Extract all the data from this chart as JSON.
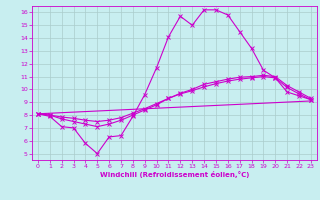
{
  "xlabel": "Windchill (Refroidissement éolien,°C)",
  "xlim": [
    -0.5,
    23.5
  ],
  "ylim": [
    4.5,
    16.5
  ],
  "xticks": [
    0,
    1,
    2,
    3,
    4,
    5,
    6,
    7,
    8,
    9,
    10,
    11,
    12,
    13,
    14,
    15,
    16,
    17,
    18,
    19,
    20,
    21,
    22,
    23
  ],
  "yticks": [
    5,
    6,
    7,
    8,
    9,
    10,
    11,
    12,
    13,
    14,
    15,
    16
  ],
  "bg_color": "#c8eef0",
  "line_color": "#cc00cc",
  "grid_color": "#aacccc",
  "lines": [
    {
      "x": [
        0,
        1,
        2,
        3,
        4,
        5,
        6,
        7,
        8,
        9,
        10,
        11,
        12,
        13,
        14,
        15,
        16,
        17,
        18,
        19,
        20,
        21,
        22,
        23
      ],
      "y": [
        8.1,
        7.9,
        7.1,
        7.0,
        5.8,
        5.0,
        6.3,
        6.4,
        7.9,
        9.6,
        11.7,
        14.1,
        15.7,
        15.0,
        16.2,
        16.2,
        15.8,
        14.5,
        13.2,
        11.5,
        10.9,
        9.8,
        9.5,
        9.2
      ],
      "marker": true
    },
    {
      "x": [
        0,
        1,
        2,
        3,
        4,
        5,
        6,
        7,
        8,
        9,
        10,
        11,
        12,
        13,
        14,
        15,
        16,
        17,
        18,
        19,
        20,
        21,
        22,
        23
      ],
      "y": [
        8.1,
        8.0,
        7.7,
        7.5,
        7.3,
        7.1,
        7.3,
        7.6,
        8.0,
        8.4,
        8.8,
        9.3,
        9.7,
        10.0,
        10.4,
        10.6,
        10.8,
        10.95,
        11.0,
        11.1,
        11.0,
        10.3,
        9.8,
        9.3
      ],
      "marker": true
    },
    {
      "x": [
        0,
        1,
        2,
        3,
        4,
        5,
        6,
        7,
        8,
        9,
        10,
        11,
        12,
        13,
        14,
        15,
        16,
        17,
        18,
        19,
        20,
        21,
        22,
        23
      ],
      "y": [
        8.1,
        8.0,
        7.85,
        7.75,
        7.6,
        7.5,
        7.6,
        7.8,
        8.15,
        8.5,
        8.9,
        9.3,
        9.65,
        9.9,
        10.2,
        10.45,
        10.65,
        10.8,
        10.9,
        11.0,
        10.9,
        10.15,
        9.65,
        9.2
      ],
      "marker": true
    },
    {
      "x": [
        0,
        23
      ],
      "y": [
        8.1,
        9.1
      ],
      "marker": false
    }
  ]
}
